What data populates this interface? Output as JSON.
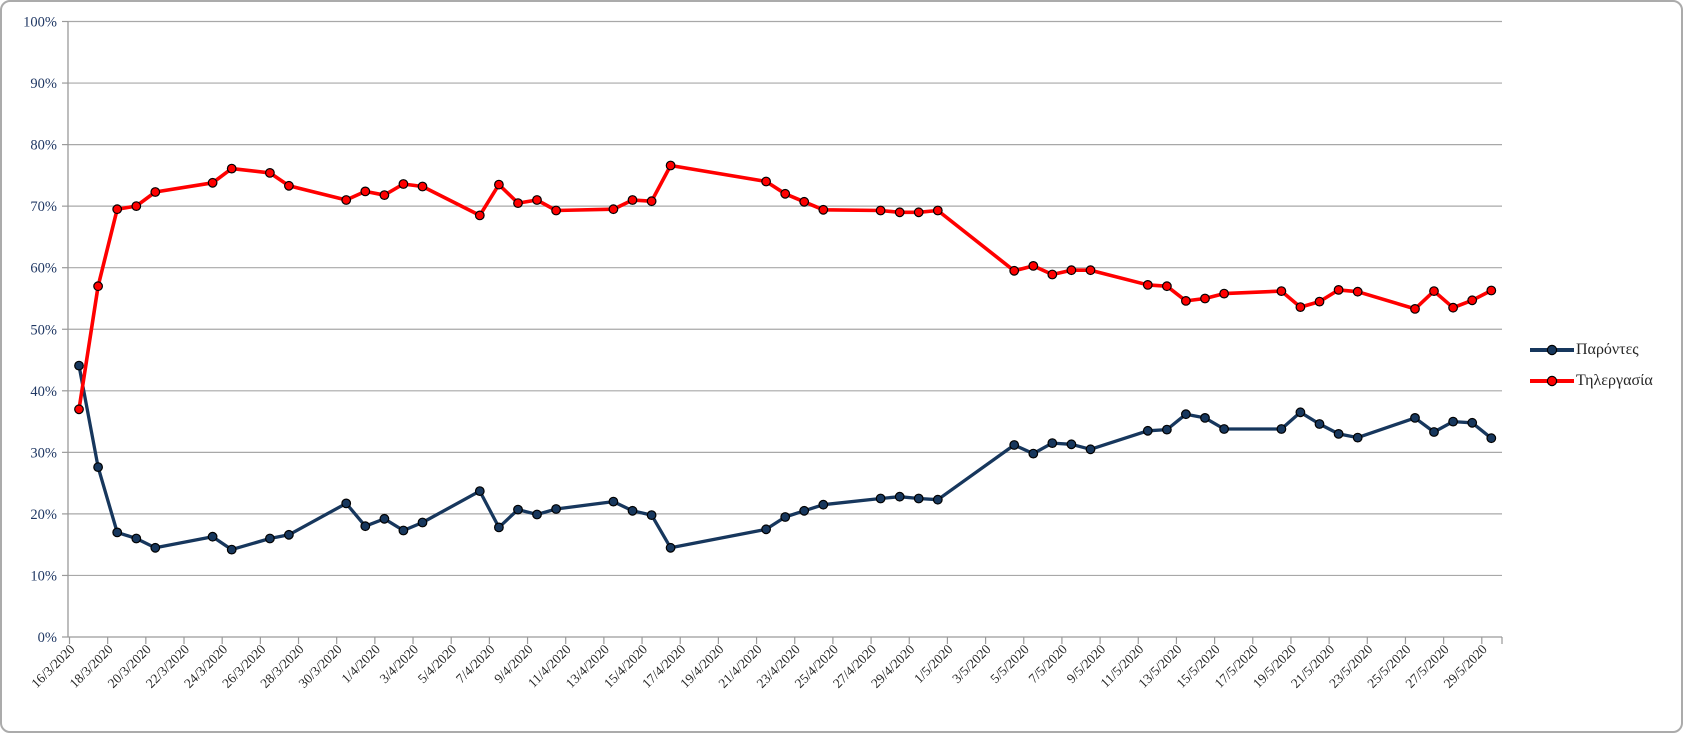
{
  "chart_data": {
    "type": "line",
    "title": "",
    "xlabel": "",
    "ylabel": "",
    "grid": true,
    "legend_position": "right",
    "ylim": [
      0,
      100
    ],
    "y_tick_labels": [
      "0%",
      "10%",
      "20%",
      "30%",
      "40%",
      "50%",
      "60%",
      "70%",
      "80%",
      "90%",
      "100%"
    ],
    "x_tick_labels": [
      "16/3/2020",
      "18/3/2020",
      "20/3/2020",
      "22/3/2020",
      "24/3/2020",
      "26/3/2020",
      "28/3/2020",
      "30/3/2020",
      "1/4/2020",
      "3/4/2020",
      "5/4/2020",
      "7/4/2020",
      "9/4/2020",
      "11/4/2020",
      "13/4/2020",
      "15/4/2020",
      "17/4/2020",
      "19/4/2020",
      "21/4/2020",
      "23/4/2020",
      "25/4/2020",
      "27/4/2020",
      "29/4/2020",
      "1/5/2020",
      "3/5/2020",
      "5/5/2020",
      "7/5/2020",
      "9/5/2020",
      "11/5/2020",
      "13/5/2020",
      "15/5/2020",
      "17/5/2020",
      "19/5/2020",
      "21/5/2020",
      "23/5/2020",
      "25/5/2020",
      "27/5/2020",
      "29/5/2020"
    ],
    "x": [
      "16/3/2020",
      "17/3/2020",
      "18/3/2020",
      "19/3/2020",
      "20/3/2020",
      "23/3/2020",
      "24/3/2020",
      "26/3/2020",
      "27/3/2020",
      "30/3/2020",
      "31/3/2020",
      "1/4/2020",
      "2/4/2020",
      "3/4/2020",
      "6/4/2020",
      "7/4/2020",
      "8/4/2020",
      "9/4/2020",
      "10/4/2020",
      "13/4/2020",
      "14/4/2020",
      "15/4/2020",
      "16/4/2020",
      "21/4/2020",
      "22/4/2020",
      "23/4/2020",
      "24/4/2020",
      "27/4/2020",
      "28/4/2020",
      "29/4/2020",
      "30/4/2020",
      "4/5/2020",
      "5/5/2020",
      "6/5/2020",
      "7/5/2020",
      "8/5/2020",
      "11/5/2020",
      "12/5/2020",
      "13/5/2020",
      "14/5/2020",
      "15/5/2020",
      "18/5/2020",
      "19/5/2020",
      "20/5/2020",
      "21/5/2020",
      "22/5/2020",
      "25/5/2020",
      "26/5/2020",
      "27/5/2020",
      "28/5/2020",
      "29/5/2020"
    ],
    "series": [
      {
        "name": "Παρόντες",
        "color": "#17375D",
        "values": [
          44.1,
          27.6,
          17.0,
          16.0,
          14.5,
          16.3,
          14.2,
          16.0,
          16.6,
          21.7,
          18.0,
          19.2,
          17.3,
          18.6,
          23.7,
          17.8,
          20.7,
          19.9,
          20.8,
          22.0,
          20.5,
          19.8,
          14.5,
          17.5,
          19.5,
          20.5,
          21.5,
          22.5,
          22.8,
          22.5,
          22.3,
          31.2,
          29.8,
          31.5,
          31.3,
          30.5,
          33.5,
          33.7,
          36.2,
          35.6,
          33.8,
          33.8,
          36.5,
          34.6,
          33.0,
          32.4,
          35.6,
          33.3,
          35.0,
          34.8,
          32.3
        ]
      },
      {
        "name": "Τηλεργασία",
        "color": "#FF0000",
        "values": [
          37.0,
          57.0,
          69.5,
          70.0,
          72.3,
          73.8,
          76.1,
          75.4,
          73.3,
          71.0,
          72.4,
          71.8,
          73.6,
          73.2,
          68.5,
          73.5,
          70.5,
          71.0,
          69.3,
          69.5,
          71.0,
          70.8,
          76.6,
          74.0,
          72.0,
          70.7,
          69.4,
          69.3,
          69.0,
          69.0,
          69.3,
          59.5,
          60.3,
          58.9,
          59.6,
          59.6,
          57.2,
          57.0,
          54.6,
          55.0,
          55.8,
          56.2,
          53.6,
          54.5,
          56.4,
          56.1,
          53.3,
          56.2,
          53.5,
          54.7,
          56.3
        ]
      }
    ],
    "colors": {
      "gridline": "#a8a8a8",
      "axis_line": "#9a9a9a",
      "y_tick_label": "#203864",
      "x_tick_label": "#262626",
      "marker_outline": "#000000",
      "frame_border": "#ababab"
    }
  }
}
